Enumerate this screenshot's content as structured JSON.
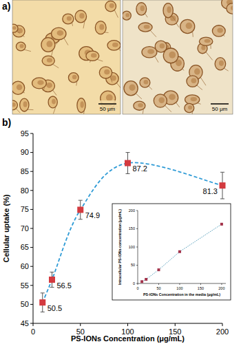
{
  "panel_a": {
    "label": "a)",
    "images": [
      {
        "scale_bar": "50 μm"
      },
      {
        "scale_bar": "50 μm"
      }
    ]
  },
  "panel_b": {
    "label": "b)"
  },
  "chart_data": [
    {
      "type": "line",
      "x_label": "PS-IONs Concentration (μg/mL)",
      "y_label": "Cellular uptake (%)",
      "x": [
        10,
        20,
        50,
        100,
        200
      ],
      "series": [
        {
          "values": [
            50.5,
            56.5,
            74.9,
            87.2,
            81.3
          ],
          "errors": [
            2.5,
            2.0,
            2.5,
            2.8,
            3.5
          ],
          "color": "#d33a3f",
          "marker": "square",
          "line_style": "dashed"
        }
      ],
      "xlim": [
        0,
        200
      ],
      "ylim": [
        45,
        95
      ],
      "xticks": [
        0,
        50,
        100,
        150,
        200
      ],
      "yticks": [
        45,
        50,
        55,
        60,
        65,
        70,
        75,
        80,
        85,
        90,
        95
      ],
      "data_labels": true
    },
    {
      "type": "line",
      "x_label": "PS-IONs Concentration in the media (μg/mL)",
      "y_label": "Intracellular PS-IONs concentration (μg/mL)",
      "x": [
        10,
        20,
        50,
        100,
        200
      ],
      "series": [
        {
          "values": [
            5.05,
            11.3,
            37.45,
            87.2,
            162.6
          ],
          "color": "#a3324a",
          "marker": "square",
          "line_style": "dotted"
        }
      ],
      "xlim": [
        0,
        210
      ],
      "ylim": [
        0,
        200
      ],
      "xticks": [
        0,
        50,
        100,
        150,
        200
      ],
      "yticks": [
        0,
        50,
        100,
        150,
        200
      ]
    }
  ]
}
